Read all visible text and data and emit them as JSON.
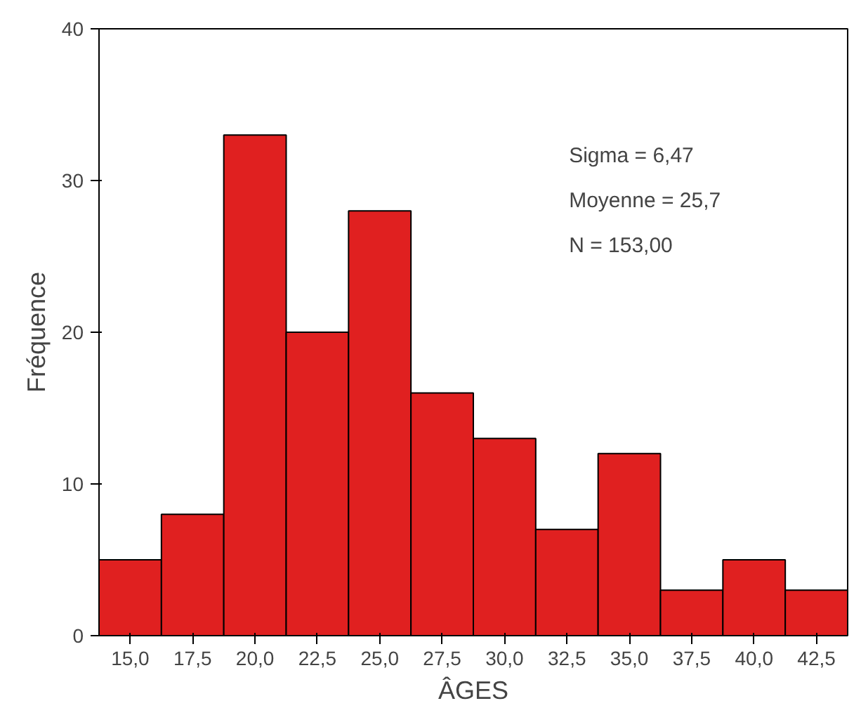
{
  "chart_data": {
    "type": "histogram",
    "xlabel": "ÂGES",
    "ylabel": "Fréquence",
    "bins": [
      13.75,
      16.25,
      18.75,
      21.25,
      23.75,
      26.25,
      28.75,
      31.25,
      33.75,
      36.25,
      38.75,
      41.25,
      43.75
    ],
    "values": [
      5,
      8,
      33,
      20,
      28,
      16,
      13,
      7,
      12,
      3,
      5,
      3
    ],
    "color": "#e02020",
    "xlim": [
      13.75,
      43.75
    ],
    "xticks": [
      {
        "value": 15,
        "label": "15,0"
      },
      {
        "value": 17.5,
        "label": "17,5"
      },
      {
        "value": 20,
        "label": "20,0"
      },
      {
        "value": 22.5,
        "label": "22,5"
      },
      {
        "value": 25,
        "label": "25,0"
      },
      {
        "value": 27.5,
        "label": "27,5"
      },
      {
        "value": 30,
        "label": "30,0"
      },
      {
        "value": 32.5,
        "label": "32,5"
      },
      {
        "value": 35,
        "label": "35,0"
      },
      {
        "value": 37.5,
        "label": "37,5"
      },
      {
        "value": 40,
        "label": "40,0"
      },
      {
        "value": 42.5,
        "label": "42,5"
      }
    ],
    "ylim": [
      0,
      40
    ],
    "yticks": [
      0,
      10,
      20,
      30,
      40
    ],
    "grid": false,
    "annotations": [
      "Sigma = 6,47",
      "Moyenne = 25,7",
      "N = 153,00"
    ]
  }
}
